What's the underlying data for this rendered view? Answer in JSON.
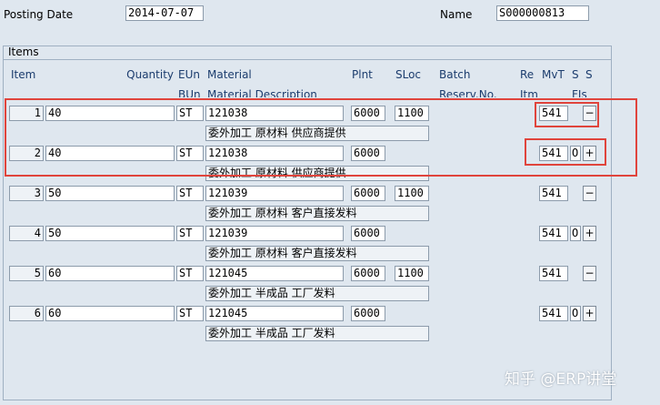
{
  "header": {
    "posting_date_label": "Posting Date",
    "posting_date": "2014-07-07",
    "name_label": "Name",
    "name": "S000000813"
  },
  "items": {
    "title": "Items",
    "columns": [
      "Item",
      "Quantity",
      "EUn",
      "Material",
      "Plnt",
      "SLoc",
      "Batch",
      "Re",
      "MvT",
      "S",
      "S"
    ],
    "columns_second": [
      "BUn",
      "Material Description",
      "Reserv.No.",
      "Itm",
      "FIs"
    ],
    "rows": [
      {
        "item": "1",
        "quantity": "40",
        "unit": "ST",
        "material": "121038",
        "plant": "6000",
        "sloc": "1100",
        "mvt": "541",
        "button": "−",
        "description": "委外加工 原材料 供应商提供"
      },
      {
        "item": "2",
        "quantity": "40",
        "unit": "ST",
        "material": "121038",
        "plant": "6000",
        "mvt": "541",
        "s": "O",
        "button": "+",
        "description": "委外加工 原材料 供应商提供"
      },
      {
        "item": "3",
        "quantity": "50",
        "unit": "ST",
        "material": "121039",
        "plant": "6000",
        "sloc": "1100",
        "mvt": "541",
        "button": "−",
        "description": "委外加工 原材料 客户直接发料"
      },
      {
        "item": "4",
        "quantity": "50",
        "unit": "ST",
        "material": "121039",
        "plant": "6000",
        "mvt": "541",
        "s": "O",
        "button": "+",
        "description": "委外加工 原材料 客户直接发料"
      },
      {
        "item": "5",
        "quantity": "60",
        "unit": "ST",
        "material": "121045",
        "plant": "6000",
        "sloc": "1100",
        "mvt": "541",
        "button": "−",
        "description": "委外加工 半成品 工厂发料"
      },
      {
        "item": "6",
        "quantity": "60",
        "unit": "ST",
        "material": "121045",
        "plant": "6000",
        "mvt": "541",
        "s": "O",
        "button": "+",
        "description": "委外加工 半成品 工厂发料"
      }
    ]
  },
  "watermark": "知乎 @ERP讲堂"
}
